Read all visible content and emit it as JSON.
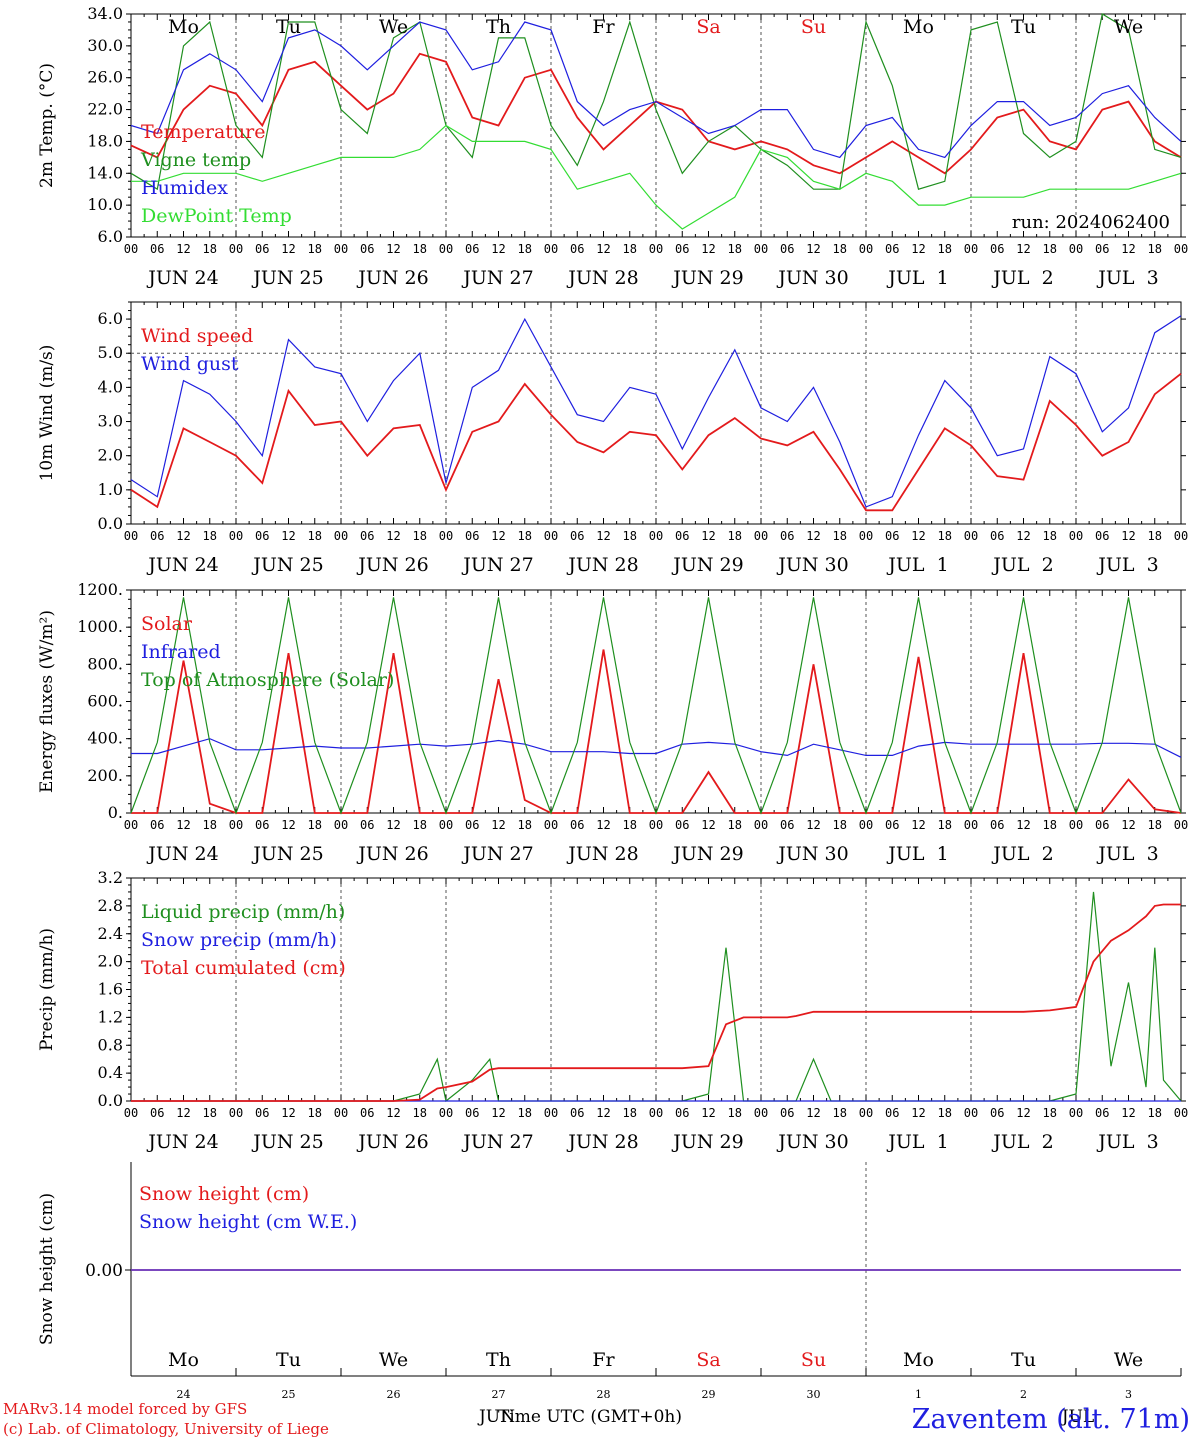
{
  "colors": {
    "red": "#e31a1c",
    "darkgreen": "#1f8f1f",
    "blue": "#1f1fdf",
    "lightgreen": "#33dd33",
    "purple": "#7a2ea8",
    "dashed": "#555555"
  },
  "weekdays": [
    "Mo",
    "Tu",
    "We",
    "Th",
    "Fr",
    "Sa",
    "Su",
    "Mo",
    "Tu",
    "We"
  ],
  "weekday_colors": [
    "black",
    "black",
    "black",
    "black",
    "black",
    "red",
    "red",
    "black",
    "black",
    "black"
  ],
  "date_labels": [
    "JUN 24",
    "JUN 25",
    "JUN 26",
    "JUN 27",
    "JUN 28",
    "JUN 29",
    "JUN 30",
    "JUL  1",
    "JUL  2",
    "JUL  3"
  ],
  "hour_ticks": [
    "00",
    "06",
    "12",
    "18"
  ],
  "last_hour_tick": "00",
  "bottom_day_numbers": [
    "24",
    "25",
    "26",
    "27",
    "28",
    "29",
    "30",
    "1",
    "2",
    "3"
  ],
  "run_label": "run: 2024062400",
  "footer": {
    "line1": "MARv3.14 model forced by GFS",
    "line2": "(c) Lab. of Climatology, University of Liege",
    "xlabel": "Time UTC (GMT+0h)",
    "month_overlay": "JUN",
    "month_overlay2": "JUL",
    "station": "Zaventem (alt. 71m)"
  },
  "chart_data": [
    {
      "type": "line",
      "ylabel": "2m Temp. (°C)",
      "ylim": [
        6,
        34
      ],
      "yticks": [
        "6.0",
        "10.0",
        "14.0",
        "18.0",
        "22.0",
        "26.0",
        "30.0",
        "34.0"
      ],
      "x_hours": [
        0,
        6,
        12,
        18,
        24,
        30,
        36,
        42,
        48,
        54,
        60,
        66,
        72,
        78,
        84,
        90,
        96,
        102,
        108,
        114,
        120,
        126,
        132,
        138,
        144,
        150,
        156,
        162,
        168,
        174,
        180,
        186,
        192,
        198,
        204,
        210,
        216,
        222,
        228,
        234,
        240
      ],
      "series": [
        {
          "name": "Temperature",
          "color": "red",
          "values": [
            17.5,
            16,
            22,
            25,
            24,
            20,
            27,
            28,
            25,
            22,
            24,
            29,
            28,
            21,
            20,
            26,
            27,
            21,
            17,
            20,
            23,
            22,
            18,
            17,
            18,
            17,
            15,
            14,
            16,
            18,
            16,
            14,
            17,
            21,
            22,
            18,
            17,
            22,
            23,
            18,
            16
          ]
        },
        {
          "name": "Vigne temp",
          "color": "darkgreen",
          "values": [
            14,
            12,
            30,
            33,
            20,
            16,
            33,
            33,
            22,
            19,
            31,
            33,
            20,
            16,
            31,
            31,
            20,
            15,
            23,
            33,
            22,
            14,
            18,
            20,
            17,
            15,
            12,
            12,
            33,
            25,
            12,
            13,
            32,
            33,
            19,
            16,
            18,
            34,
            32,
            17,
            16
          ]
        },
        {
          "name": "Humidex",
          "color": "blue",
          "values": [
            20,
            19,
            27,
            29,
            27,
            23,
            31,
            32,
            30,
            27,
            30,
            33,
            32,
            27,
            28,
            33,
            32,
            23,
            20,
            22,
            23,
            21,
            19,
            20,
            22,
            22,
            17,
            16,
            20,
            21,
            17,
            16,
            20,
            23,
            23,
            20,
            21,
            24,
            25,
            21,
            18
          ]
        },
        {
          "name": "DewPoint Temp",
          "color": "lightgreen",
          "values": [
            13,
            13,
            14,
            14,
            14,
            13,
            14,
            15,
            16,
            16,
            16,
            17,
            20,
            18,
            18,
            18,
            17,
            12,
            13,
            14,
            10,
            7,
            9,
            11,
            17,
            16,
            13,
            12,
            14,
            13,
            10,
            10,
            11,
            11,
            11,
            12,
            12,
            12,
            12,
            13,
            14
          ]
        }
      ]
    },
    {
      "type": "line",
      "ylabel": "10m Wind (m/s)",
      "ylim": [
        0,
        6.5
      ],
      "yticks": [
        "0.0",
        "1.0",
        "2.0",
        "3.0",
        "4.0",
        "5.0",
        "6.0"
      ],
      "ref_line": 5.0,
      "x_hours": [
        0,
        6,
        12,
        18,
        24,
        30,
        36,
        42,
        48,
        54,
        60,
        66,
        72,
        78,
        84,
        90,
        96,
        102,
        108,
        114,
        120,
        126,
        132,
        138,
        144,
        150,
        156,
        162,
        168,
        174,
        180,
        186,
        192,
        198,
        204,
        210,
        216,
        222,
        228,
        234,
        240
      ],
      "series": [
        {
          "name": "Wind speed",
          "color": "red",
          "values": [
            1.0,
            0.5,
            2.8,
            2.4,
            2.0,
            1.2,
            3.9,
            2.9,
            3.0,
            2.0,
            2.8,
            2.9,
            1.0,
            2.7,
            3.0,
            4.1,
            3.2,
            2.4,
            2.1,
            2.7,
            2.6,
            1.6,
            2.6,
            3.1,
            2.5,
            2.3,
            2.7,
            1.6,
            0.4,
            0.4,
            1.6,
            2.8,
            2.3,
            1.4,
            1.3,
            3.6,
            2.9,
            2.0,
            2.4,
            3.8,
            4.4
          ]
        },
        {
          "name": "Wind gust",
          "color": "blue",
          "values": [
            1.3,
            0.8,
            4.2,
            3.8,
            3.0,
            2.0,
            5.4,
            4.6,
            4.4,
            3.0,
            4.2,
            5.0,
            1.2,
            4.0,
            4.5,
            6.0,
            4.6,
            3.2,
            3.0,
            4.0,
            3.8,
            2.2,
            3.7,
            5.1,
            3.4,
            3.0,
            4.0,
            2.4,
            0.5,
            0.8,
            2.6,
            4.2,
            3.4,
            2.0,
            2.2,
            4.9,
            4.4,
            2.7,
            3.4,
            5.6,
            6.1
          ]
        }
      ]
    },
    {
      "type": "line",
      "ylabel": "Energy fluxes (W/m²)",
      "ylim": [
        0,
        1200
      ],
      "yticks": [
        "0.",
        "200.",
        "400.",
        "600.",
        "800.",
        "1000.",
        "1200."
      ],
      "x_hours": [
        0,
        6,
        12,
        18,
        24,
        30,
        36,
        42,
        48,
        54,
        60,
        66,
        72,
        78,
        84,
        90,
        96,
        102,
        108,
        114,
        120,
        126,
        132,
        138,
        144,
        150,
        156,
        162,
        168,
        174,
        180,
        186,
        192,
        198,
        204,
        210,
        216,
        222,
        228,
        234,
        240
      ],
      "series": [
        {
          "name": "Solar",
          "color": "red",
          "values": [
            0,
            0,
            820,
            50,
            0,
            0,
            860,
            0,
            0,
            0,
            860,
            0,
            0,
            0,
            720,
            70,
            0,
            0,
            880,
            0,
            0,
            0,
            220,
            0,
            0,
            0,
            800,
            0,
            0,
            0,
            840,
            0,
            0,
            0,
            860,
            0,
            0,
            0,
            180,
            20,
            0
          ]
        },
        {
          "name": "Infrared",
          "color": "blue",
          "values": [
            320,
            320,
            360,
            400,
            340,
            340,
            350,
            360,
            350,
            350,
            360,
            370,
            360,
            370,
            390,
            370,
            330,
            330,
            330,
            320,
            320,
            370,
            380,
            370,
            330,
            310,
            370,
            340,
            310,
            310,
            360,
            380,
            370,
            370,
            370,
            370,
            370,
            375,
            375,
            370,
            300
          ]
        },
        {
          "name": "Top of Atmosphere (Solar)",
          "color": "darkgreen",
          "values": [
            0,
            380,
            1160,
            380,
            0,
            380,
            1160,
            380,
            0,
            380,
            1160,
            380,
            0,
            380,
            1160,
            380,
            0,
            380,
            1160,
            380,
            0,
            380,
            1160,
            380,
            0,
            380,
            1160,
            380,
            0,
            380,
            1160,
            380,
            0,
            380,
            1160,
            380,
            0,
            380,
            1160,
            380,
            0
          ]
        }
      ]
    },
    {
      "type": "line",
      "ylabel": "Precip (mm/h)",
      "ylim": [
        0,
        3.2
      ],
      "yticks": [
        "0.0",
        "0.4",
        "0.8",
        "1.2",
        "1.6",
        "2.0",
        "2.4",
        "2.8",
        "3.2"
      ],
      "x_hours": [
        0,
        6,
        12,
        18,
        24,
        30,
        36,
        42,
        48,
        54,
        60,
        66,
        70,
        72,
        78,
        82,
        84,
        90,
        96,
        102,
        108,
        114,
        120,
        126,
        132,
        136,
        140,
        144,
        150,
        152,
        156,
        160,
        168,
        174,
        180,
        186,
        192,
        198,
        204,
        210,
        216,
        220,
        224,
        228,
        232,
        234,
        236,
        240
      ],
      "series": [
        {
          "name": "Liquid precip (mm/h)",
          "color": "darkgreen",
          "values": [
            0,
            0,
            0,
            0,
            0,
            0,
            0,
            0,
            0,
            0,
            0,
            0.1,
            0.6,
            0,
            0.3,
            0.6,
            0,
            0,
            0,
            0,
            0,
            0,
            0,
            0,
            0.1,
            2.2,
            0,
            0,
            0,
            0,
            0.6,
            0,
            0,
            0,
            0,
            0,
            0,
            0,
            0,
            0,
            0.1,
            3.0,
            0.5,
            1.7,
            0.2,
            2.2,
            0.3,
            0
          ]
        },
        {
          "name": "Snow precip (mm/h)",
          "color": "blue",
          "values": [
            0,
            0,
            0,
            0,
            0,
            0,
            0,
            0,
            0,
            0,
            0,
            0,
            0,
            0,
            0,
            0,
            0,
            0,
            0,
            0,
            0,
            0,
            0,
            0,
            0,
            0,
            0,
            0,
            0,
            0,
            0,
            0,
            0,
            0,
            0,
            0,
            0,
            0,
            0,
            0,
            0,
            0,
            0,
            0,
            0,
            0,
            0,
            0
          ]
        },
        {
          "name": "Total cumulated (cm)",
          "color": "red",
          "values": [
            0,
            0,
            0,
            0,
            0,
            0,
            0,
            0,
            0,
            0,
            0,
            0.02,
            0.18,
            0.2,
            0.28,
            0.45,
            0.47,
            0.47,
            0.47,
            0.47,
            0.47,
            0.47,
            0.47,
            0.47,
            0.5,
            1.1,
            1.2,
            1.2,
            1.2,
            1.22,
            1.28,
            1.28,
            1.28,
            1.28,
            1.28,
            1.28,
            1.28,
            1.28,
            1.28,
            1.3,
            1.35,
            2.0,
            2.3,
            2.45,
            2.65,
            2.8,
            2.82,
            2.82
          ]
        }
      ]
    },
    {
      "type": "line",
      "ylabel": "Snow height (cm)",
      "yticks": [
        "0.00"
      ],
      "x_hours": [
        0,
        240
      ],
      "series": [
        {
          "name": "Snow height (cm)",
          "color": "red",
          "values": [
            0,
            0
          ]
        },
        {
          "name": "Snow height (cm W.E.)",
          "color": "blue",
          "values": [
            0,
            0
          ]
        }
      ]
    }
  ]
}
